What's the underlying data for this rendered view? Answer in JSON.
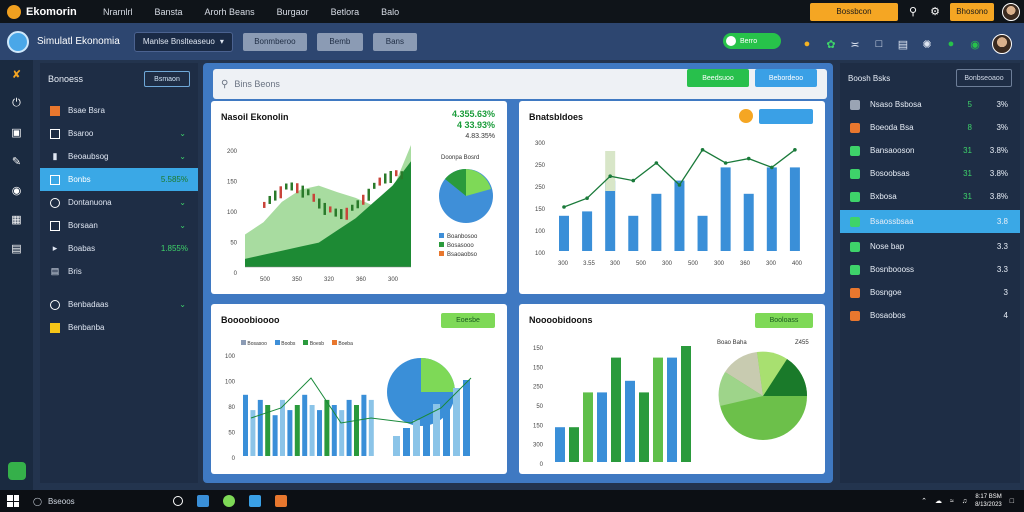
{
  "topbar": {
    "logo_text": "Ekomorin",
    "menu": [
      "Nrarnlrl",
      "Bansta",
      "Arorh Beans",
      "Burgaor",
      "Betlora",
      "Balo"
    ],
    "orange_btn_1": "Bossbcon",
    "orange_btn_2": "Bhosono"
  },
  "subbar": {
    "app_title": "Simulatl Ekonomia",
    "dropdown": "Manlse Bnslteaseuo",
    "buttons": [
      "Bonmberoo",
      "Bemb",
      "Bans"
    ],
    "toggle_label": "Berro"
  },
  "sidebar": {
    "header": "Bonoess",
    "header_btn": "Bsmaon",
    "items": [
      {
        "label": "Bsae Bsra",
        "value": "",
        "chevron": false,
        "icon_color": "#e8772e"
      },
      {
        "label": "Bsaroo",
        "value": "",
        "chevron": true,
        "icon_color": ""
      },
      {
        "label": "Beoaubsog",
        "value": "",
        "chevron": true,
        "icon_color": ""
      },
      {
        "label": "Bonbs",
        "value": "5.585%",
        "chevron": false,
        "icon_color": "",
        "active": true
      },
      {
        "label": "Dontanuona",
        "value": "",
        "chevron": true,
        "icon_color": ""
      },
      {
        "label": "Borsaan",
        "value": "",
        "chevron": true,
        "icon_color": ""
      },
      {
        "label": "Boabas",
        "value": "1.855%",
        "chevron": false,
        "icon_color": ""
      },
      {
        "label": "Bris",
        "value": "",
        "chevron": false,
        "icon_color": ""
      },
      {
        "label": "Benbadaas",
        "value": "",
        "chevron": true,
        "icon_color": ""
      },
      {
        "label": "Benbanba",
        "value": "",
        "chevron": false,
        "icon_color": "#f5c518"
      }
    ]
  },
  "main": {
    "search_placeholder": "Bins Beons",
    "btn_green": "Beedsuoo",
    "btn_blue": "Bebordeoo"
  },
  "card1": {
    "title": "Nasoil Ekonolin",
    "big_value_1": "4.355.63%",
    "big_value_2": "4 33.93%",
    "sub_value": "4.83.35%",
    "pie_title": "Doonpa Bosrd",
    "legend": [
      "Boanbosoo",
      "Bosasooo",
      "Bsaoaobso"
    ]
  },
  "card2": {
    "title": "Bnatsbldoes"
  },
  "card3": {
    "title": "Boooobioooo",
    "badge": "Eoesbe",
    "legend": [
      "Bosasoo",
      "Boobs",
      "Boesb",
      "Boeba"
    ]
  },
  "card4": {
    "title": "Noooobidoons",
    "badge": "Booloass",
    "pie_title_left": "Boao Baha",
    "pie_title_right": "Z455"
  },
  "rpanel": {
    "header": "Boosh Bsks",
    "header_btn": "Bonbseoaoo",
    "items": [
      {
        "label": "Nsaso Bsbosa",
        "v1": "5",
        "v2": "3%",
        "icon": "#9aa4b4"
      },
      {
        "label": "Boeoda Bsa",
        "v1": "8",
        "v2": "3%",
        "icon": "#e8772e"
      },
      {
        "label": "Bansaooson",
        "v1": "31",
        "v2": "3.8%",
        "icon": "#3ed36a"
      },
      {
        "label": "Bosoobsas",
        "v1": "31",
        "v2": "3.8%",
        "icon": "#3ed36a"
      },
      {
        "label": "Bxbosa",
        "v1": "31",
        "v2": "3.8%",
        "icon": "#3ed36a"
      },
      {
        "label": "Bsaossbsaa",
        "v1": "",
        "v2": "3.8",
        "icon": "#3ed36a",
        "active": true
      },
      {
        "label": "Nose bap",
        "v1": "",
        "v2": "3.3",
        "icon": "#3ed36a"
      },
      {
        "label": "Bosnboooss",
        "v1": "",
        "v2": "3.3",
        "icon": "#3ed36a"
      },
      {
        "label": "Bosngoe",
        "v1": "",
        "v2": "3",
        "icon": "#e8772e"
      },
      {
        "label": "Bosaobos",
        "v1": "",
        "v2": "4",
        "icon": "#e8772e"
      }
    ]
  },
  "taskbar": {
    "search": "Bseoos",
    "time": "8:17 BSM",
    "date": "8/13/2023"
  },
  "chart_data": [
    {
      "type": "line",
      "id": "card1",
      "title": "Nasoil Ekonolin",
      "ylabels": [
        "200",
        "150",
        "100",
        "50",
        "0"
      ],
      "xlabels": [
        "500",
        "350",
        "320",
        "360",
        "300"
      ],
      "area_values": [
        40,
        55,
        80,
        95,
        100,
        92,
        85,
        75,
        95,
        150
      ],
      "area2_values": [
        10,
        15,
        20,
        25,
        30,
        45,
        60,
        80,
        100,
        130
      ]
    },
    {
      "type": "bar",
      "id": "card2",
      "title": "Bnatsbldoes",
      "ylabels": [
        "300",
        "250",
        "250",
        "150",
        "100",
        "100"
      ],
      "xlabels": [
        "300",
        "3.55",
        "300",
        "500",
        "300",
        "500",
        "300",
        "360",
        "300",
        "400"
      ],
      "values": [
        80,
        90,
        160,
        80,
        130,
        160,
        80,
        190,
        130,
        190,
        190
      ],
      "line_values": [
        100,
        120,
        170,
        160,
        200,
        150,
        230,
        200,
        210,
        190,
        230
      ]
    },
    {
      "type": "bar",
      "id": "card3",
      "title": "Boooobioooo",
      "ylabels": [
        "100",
        "100",
        "80",
        "50",
        "0"
      ],
      "values": [
        60,
        45,
        55,
        50,
        40,
        55,
        45,
        50,
        60,
        50,
        45,
        55,
        50,
        45,
        55,
        50,
        60,
        55
      ]
    },
    {
      "type": "bar",
      "id": "card4",
      "title": "Noooobidoons",
      "ylabels": [
        "150",
        "150",
        "250",
        "50",
        "150",
        "300",
        "0"
      ],
      "values": [
        30,
        30,
        60,
        60,
        90,
        70,
        60,
        90,
        90,
        100
      ]
    }
  ]
}
